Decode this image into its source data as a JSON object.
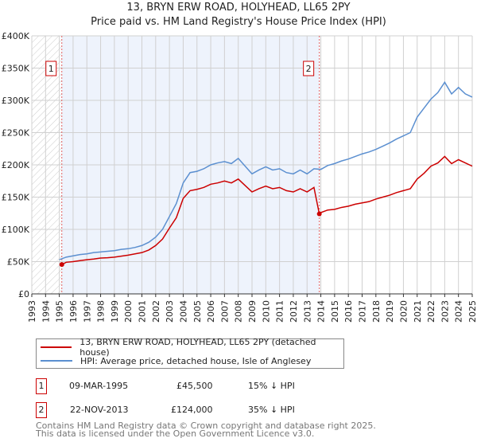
{
  "title": "13, BRYN ERW ROAD, HOLYHEAD, LL65 2PY",
  "subtitle": "Price paid vs. HM Land Registry's House Price Index (HPI)",
  "chart_data": {
    "type": "line",
    "title": "13, BRYN ERW ROAD, HOLYHEAD, LL65 2PY",
    "xlabel": "",
    "ylabel": "",
    "xlim": [
      1993,
      2025
    ],
    "ylim": [
      0,
      400000
    ],
    "x_ticks": [
      "1993",
      "1994",
      "1995",
      "1996",
      "1997",
      "1998",
      "1999",
      "2000",
      "2001",
      "2002",
      "2003",
      "2004",
      "2005",
      "2006",
      "2007",
      "2008",
      "2009",
      "2010",
      "2011",
      "2012",
      "2013",
      "2014",
      "2015",
      "2016",
      "2017",
      "2018",
      "2019",
      "2020",
      "2021",
      "2022",
      "2023",
      "2024",
      "2025"
    ],
    "y_ticks": [
      {
        "v": 0,
        "label": "£0"
      },
      {
        "v": 50000,
        "label": "£50K"
      },
      {
        "v": 100000,
        "label": "£100K"
      },
      {
        "v": 150000,
        "label": "£150K"
      },
      {
        "v": 200000,
        "label": "£200K"
      },
      {
        "v": 250000,
        "label": "£250K"
      },
      {
        "v": 300000,
        "label": "£300K"
      },
      {
        "v": 350000,
        "label": "£350K"
      },
      {
        "v": 400000,
        "label": "£400K"
      }
    ],
    "grid": true,
    "series": [
      {
        "name": "13, BRYN ERW ROAD, HOLYHEAD, LL65 2PY (detached house)",
        "color": "#cc0000",
        "x": [
          1995.18,
          1995.5,
          1996,
          1996.5,
          1997,
          1997.5,
          1998,
          1998.5,
          1999,
          1999.5,
          2000,
          2000.5,
          2001,
          2001.5,
          2002,
          2002.5,
          2003,
          2003.5,
          2004,
          2004.5,
          2005,
          2005.5,
          2006,
          2006.5,
          2007,
          2007.5,
          2008,
          2008.5,
          2009,
          2009.5,
          2010,
          2010.5,
          2011,
          2011.5,
          2012,
          2012.5,
          2013,
          2013.5,
          2013.89,
          2014,
          2014.5,
          2015,
          2015.5,
          2016,
          2016.5,
          2017,
          2017.5,
          2018,
          2018.5,
          2019,
          2019.5,
          2020,
          2020.5,
          2021,
          2021.5,
          2022,
          2022.5,
          2023,
          2023.5,
          2024,
          2024.5,
          2025
        ],
        "y": [
          45500,
          49000,
          50000,
          51500,
          53000,
          54000,
          55500,
          56000,
          57000,
          58500,
          60000,
          62000,
          64000,
          68000,
          75000,
          85000,
          102000,
          118000,
          148000,
          160000,
          162000,
          165000,
          170000,
          172000,
          175000,
          172000,
          178000,
          168000,
          158000,
          163000,
          167000,
          163000,
          165000,
          160000,
          158000,
          163000,
          158000,
          165000,
          124000,
          126000,
          130000,
          131000,
          134000,
          136000,
          139000,
          141000,
          143000,
          147000,
          150000,
          153000,
          157000,
          160000,
          163000,
          178000,
          187000,
          198000,
          203000,
          213000,
          202000,
          208000,
          203000,
          198000
        ]
      },
      {
        "name": "HPI: Average price, detached house, Isle of Anglesey",
        "color": "#5b8fd0",
        "x": [
          1995,
          1995.5,
          1996,
          1996.5,
          1997,
          1997.5,
          1998,
          1998.5,
          1999,
          1999.5,
          2000,
          2000.5,
          2001,
          2001.5,
          2002,
          2002.5,
          2003,
          2003.5,
          2004,
          2004.5,
          2005,
          2005.5,
          2006,
          2006.5,
          2007,
          2007.5,
          2008,
          2008.5,
          2009,
          2009.5,
          2010,
          2010.5,
          2011,
          2011.5,
          2012,
          2012.5,
          2013,
          2013.5,
          2014,
          2014.5,
          2015,
          2015.5,
          2016,
          2016.5,
          2017,
          2017.5,
          2018,
          2018.5,
          2019,
          2019.5,
          2020,
          2020.5,
          2021,
          2021.5,
          2022,
          2022.5,
          2023,
          2023.5,
          2024,
          2024.5,
          2025
        ],
        "y": [
          53000,
          57000,
          59000,
          61000,
          62000,
          64000,
          65000,
          66000,
          67000,
          69000,
          70000,
          72000,
          75000,
          80000,
          88000,
          100000,
          120000,
          140000,
          172000,
          188000,
          190000,
          194000,
          200000,
          203000,
          205000,
          202000,
          210000,
          198000,
          186000,
          192000,
          197000,
          192000,
          194000,
          188000,
          186000,
          192000,
          186000,
          194000,
          193000,
          199000,
          202000,
          206000,
          209000,
          213000,
          217000,
          220000,
          224000,
          229000,
          234000,
          240000,
          245000,
          250000,
          274000,
          288000,
          302000,
          312000,
          328000,
          310000,
          320000,
          310000,
          305000
        ]
      }
    ],
    "sales": [
      {
        "label": "1",
        "x": 1995.18,
        "y": 45500
      },
      {
        "label": "2",
        "x": 2013.89,
        "y": 124000
      }
    ]
  },
  "legend": [
    {
      "label": "13, BRYN ERW ROAD, HOLYHEAD, LL65 2PY (detached house)",
      "color": "#cc0000"
    },
    {
      "label": "HPI: Average price, detached house, Isle of Anglesey",
      "color": "#5b8fd0"
    }
  ],
  "sales_table": [
    {
      "num": "1",
      "date": "09-MAR-1995",
      "price": "£45,500",
      "delta": "15% ↓ HPI"
    },
    {
      "num": "2",
      "date": "22-NOV-2013",
      "price": "£124,000",
      "delta": "35% ↓ HPI"
    }
  ],
  "footer": [
    "Contains HM Land Registry data © Crown copyright and database right 2025.",
    "This data is licensed under the Open Government Licence v3.0."
  ]
}
